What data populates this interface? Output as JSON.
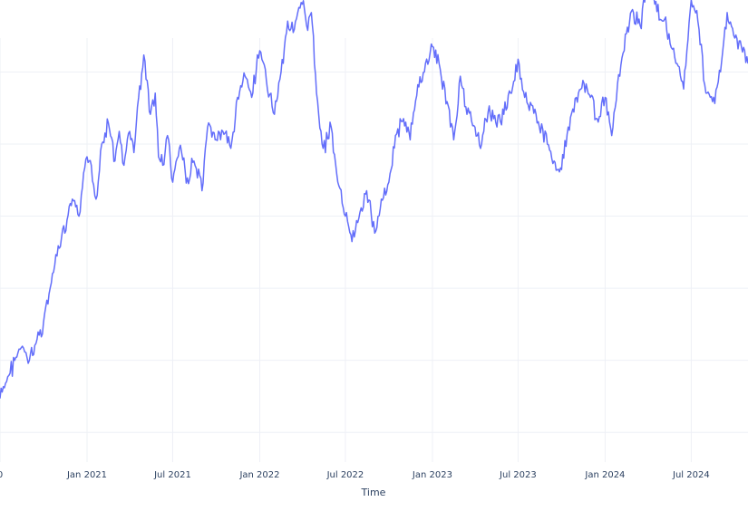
{
  "chart_data": {
    "type": "line",
    "title": "",
    "xlabel": "Time",
    "ylabel": "",
    "grid": true,
    "x_ticks": [
      "0",
      "Jan 2021",
      "Jul 2021",
      "Jan 2022",
      "Jul 2022",
      "Jan 2023",
      "Jul 2023",
      "Jan 2024",
      "Jul 2024"
    ],
    "x_tick_dates": [
      "2020-07-01",
      "2021-01-01",
      "2021-07-01",
      "2022-01-01",
      "2022-07-01",
      "2023-01-01",
      "2023-07-01",
      "2024-01-01",
      "2024-07-01"
    ],
    "xlim": [
      "2020-07-01",
      "2024-10-29"
    ],
    "y_gridlines": [
      0.92,
      0.75,
      0.58,
      0.41,
      0.24,
      0.07
    ],
    "ylim": [
      0,
      1
    ],
    "series": [
      {
        "color": "#636efa",
        "x": [
          "2020-07-01",
          "2020-07-15",
          "2020-08-01",
          "2020-08-15",
          "2020-09-01",
          "2020-09-15",
          "2020-10-01",
          "2020-10-15",
          "2020-11-01",
          "2020-11-15",
          "2020-12-01",
          "2020-12-15",
          "2021-01-01",
          "2021-01-10",
          "2021-01-20",
          "2021-02-01",
          "2021-02-15",
          "2021-03-01",
          "2021-03-10",
          "2021-03-20",
          "2021-04-01",
          "2021-04-10",
          "2021-04-20",
          "2021-05-01",
          "2021-05-15",
          "2021-05-25",
          "2021-06-01",
          "2021-06-10",
          "2021-06-20",
          "2021-07-01",
          "2021-07-15",
          "2021-08-01",
          "2021-08-15",
          "2021-09-01",
          "2021-09-15",
          "2021-10-01",
          "2021-10-15",
          "2021-11-01",
          "2021-11-15",
          "2021-12-01",
          "2021-12-15",
          "2022-01-01",
          "2022-01-15",
          "2022-02-01",
          "2022-02-15",
          "2022-03-01",
          "2022-03-15",
          "2022-04-01",
          "2022-04-10",
          "2022-04-20",
          "2022-05-01",
          "2022-05-15",
          "2022-06-01",
          "2022-06-15",
          "2022-07-01",
          "2022-07-15",
          "2022-08-01",
          "2022-08-15",
          "2022-09-01",
          "2022-09-15",
          "2022-10-01",
          "2022-10-15",
          "2022-11-01",
          "2022-11-15",
          "2022-12-01",
          "2022-12-15",
          "2023-01-01",
          "2023-01-15",
          "2023-02-01",
          "2023-02-15",
          "2023-03-01",
          "2023-03-15",
          "2023-04-01",
          "2023-04-15",
          "2023-05-01",
          "2023-05-15",
          "2023-06-01",
          "2023-06-15",
          "2023-07-01",
          "2023-07-15",
          "2023-08-01",
          "2023-08-15",
          "2023-09-01",
          "2023-09-15",
          "2023-10-01",
          "2023-10-15",
          "2023-11-01",
          "2023-11-15",
          "2023-12-01",
          "2023-12-15",
          "2024-01-01",
          "2024-01-15",
          "2024-02-01",
          "2024-02-15",
          "2024-03-01",
          "2024-03-15",
          "2024-04-01",
          "2024-04-15",
          "2024-05-01",
          "2024-05-15",
          "2024-06-01",
          "2024-06-15",
          "2024-07-01",
          "2024-07-15",
          "2024-08-01",
          "2024-08-15",
          "2024-09-01",
          "2024-09-15",
          "2024-10-01",
          "2024-10-15",
          "2024-10-29"
        ],
        "y": [
          0.15,
          0.19,
          0.24,
          0.27,
          0.24,
          0.28,
          0.33,
          0.41,
          0.51,
          0.54,
          0.62,
          0.58,
          0.72,
          0.7,
          0.62,
          0.75,
          0.8,
          0.71,
          0.78,
          0.7,
          0.78,
          0.73,
          0.86,
          0.96,
          0.82,
          0.87,
          0.72,
          0.7,
          0.77,
          0.66,
          0.74,
          0.67,
          0.71,
          0.64,
          0.8,
          0.76,
          0.78,
          0.74,
          0.86,
          0.91,
          0.86,
          0.97,
          0.9,
          0.82,
          0.92,
          1.04,
          1.02,
          1.08,
          1.03,
          1.06,
          0.87,
          0.74,
          0.79,
          0.66,
          0.58,
          0.52,
          0.59,
          0.64,
          0.54,
          0.62,
          0.66,
          0.77,
          0.81,
          0.76,
          0.89,
          0.92,
          0.98,
          0.94,
          0.85,
          0.76,
          0.91,
          0.82,
          0.79,
          0.75,
          0.84,
          0.8,
          0.82,
          0.87,
          0.95,
          0.86,
          0.84,
          0.79,
          0.75,
          0.71,
          0.69,
          0.79,
          0.86,
          0.9,
          0.86,
          0.81,
          0.86,
          0.77,
          0.91,
          1.01,
          1.06,
          1.03,
          1.13,
          1.08,
          1.04,
          1.01,
          0.94,
          0.88,
          1.09,
          1.04,
          0.87,
          0.85,
          0.92,
          1.06,
          1.0,
          0.98,
          0.94
        ]
      }
    ]
  }
}
